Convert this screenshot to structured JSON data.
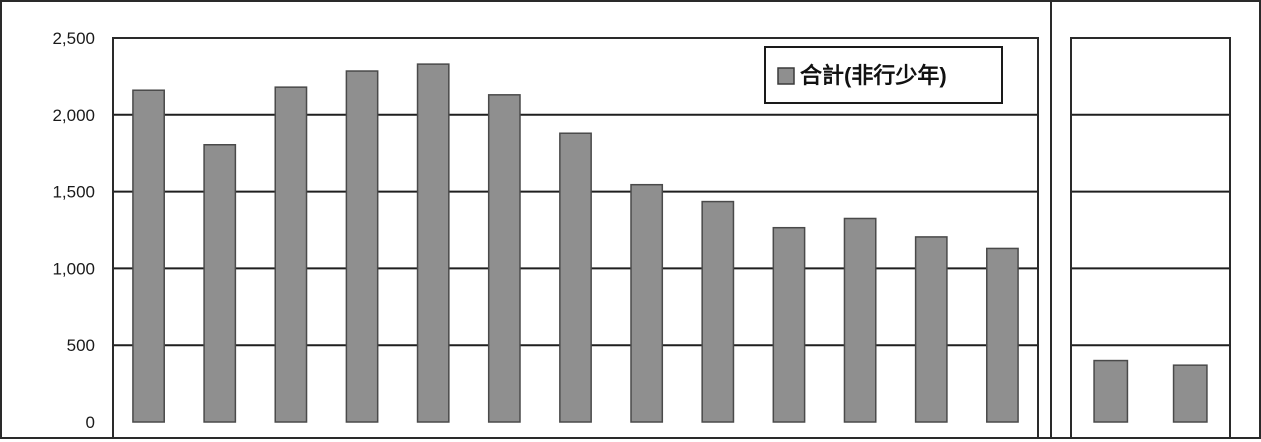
{
  "chart_data": [
    {
      "type": "bar",
      "categories": [
        "",
        "",
        "",
        "",
        "",
        "",
        "",
        "",
        "",
        "",
        "",
        "",
        ""
      ],
      "series": [
        {
          "name": "合計(非行少年)",
          "values": [
            2160,
            1805,
            2180,
            2285,
            2330,
            2130,
            1880,
            1545,
            1435,
            1265,
            1325,
            1205,
            1130
          ]
        }
      ],
      "title": "",
      "xlabel": "",
      "ylabel": "",
      "ylim": [
        0,
        2500
      ],
      "yticks": [
        "0",
        "500",
        "1,000",
        "1,500",
        "2,000",
        "2,500"
      ],
      "grid": true,
      "legend_position": "top-right"
    },
    {
      "type": "bar",
      "categories": [
        "",
        ""
      ],
      "series": [
        {
          "name": "",
          "values": [
            400,
            370
          ]
        }
      ],
      "title": "",
      "xlabel": "",
      "ylabel": "",
      "ylim": [
        0,
        2500
      ],
      "grid": true
    }
  ],
  "colors": {
    "bar_fill": "#8f8f8f",
    "bar_stroke": "#4a4a4a",
    "grid": "#1f1f1f",
    "frame": "#2a2a2a"
  },
  "legend": {
    "icon": "square-swatch-icon",
    "label": "合計(非行少年)"
  }
}
